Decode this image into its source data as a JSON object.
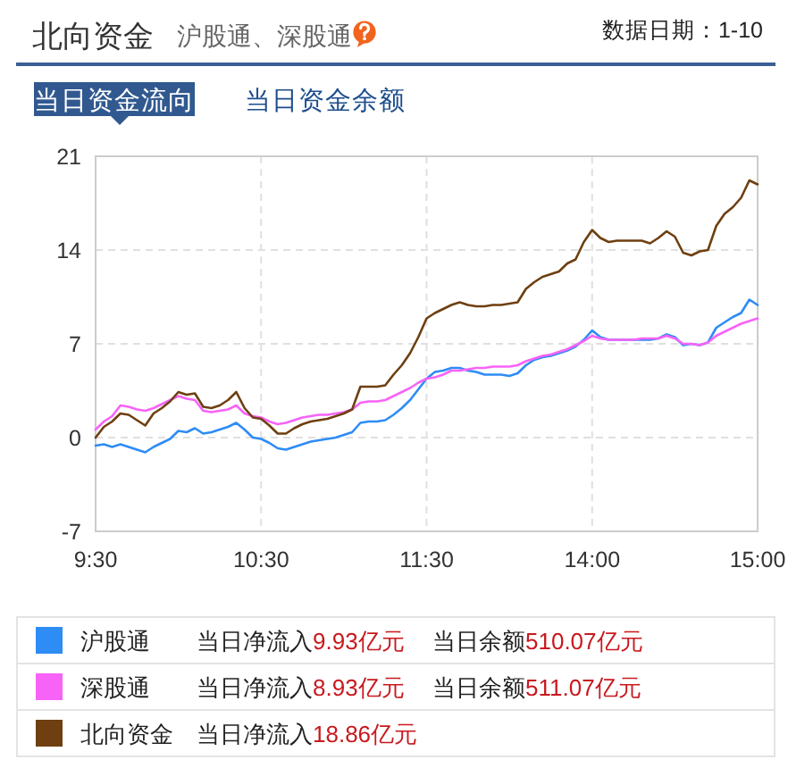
{
  "chart_data": {
    "type": "line",
    "title": "北向资金",
    "subtitle": "沪股通、深股通",
    "annotations": [
      "数据日期：1-10",
      "当日资金流向",
      "当日资金余额",
      "当日净流入9.93亿元",
      "当日余额510.07亿元",
      "当日净流入8.93亿元",
      "当日余额511.07亿元",
      "当日净流入18.86亿元"
    ],
    "categories": [
      "9:30",
      null,
      null,
      null,
      null,
      null,
      null,
      null,
      null,
      null,
      null,
      null,
      null,
      null,
      null,
      null,
      null,
      null,
      null,
      null,
      "10:30",
      null,
      null,
      null,
      null,
      null,
      null,
      null,
      null,
      null,
      null,
      null,
      null,
      null,
      null,
      null,
      null,
      null,
      null,
      null,
      "11:30",
      null,
      null,
      null,
      null,
      null,
      null,
      null,
      null,
      null,
      null,
      null,
      null,
      null,
      null,
      null,
      null,
      null,
      null,
      null,
      "14:00",
      null,
      null,
      null,
      null,
      null,
      null,
      null,
      null,
      null,
      null,
      null,
      null,
      null,
      null,
      null,
      null,
      null,
      null,
      null,
      "15:00"
    ],
    "series": [
      {
        "name": "沪股通",
        "color": "#2e8cf5",
        "values": [
          -0.6,
          -0.5,
          -0.7,
          -0.5,
          -0.7,
          -0.9,
          -1.1,
          -0.7,
          -0.4,
          -0.1,
          0.5,
          0.4,
          0.7,
          0.3,
          0.4,
          0.6,
          0.8,
          1.1,
          0.6,
          0.0,
          -0.1,
          -0.4,
          -0.8,
          -0.9,
          -0.7,
          -0.5,
          -0.3,
          -0.2,
          -0.1,
          0.0,
          0.2,
          0.4,
          1.1,
          1.2,
          1.2,
          1.3,
          1.7,
          2.2,
          2.8,
          3.6,
          4.4,
          4.9,
          5.0,
          5.2,
          5.2,
          5.0,
          4.9,
          4.7,
          4.7,
          4.7,
          4.6,
          4.8,
          5.4,
          5.8,
          6.0,
          6.1,
          6.3,
          6.5,
          6.8,
          7.3,
          8.0,
          7.5,
          7.3,
          7.3,
          7.3,
          7.3,
          7.3,
          7.3,
          7.4,
          7.7,
          7.5,
          6.9,
          7.0,
          6.9,
          7.1,
          8.2,
          8.6,
          9.0,
          9.3,
          10.3,
          9.9
        ]
      },
      {
        "name": "深股通",
        "color": "#f763f7",
        "values": [
          0.6,
          1.2,
          1.6,
          2.4,
          2.3,
          2.1,
          2.0,
          2.2,
          2.5,
          2.8,
          3.1,
          2.9,
          2.8,
          2.0,
          1.9,
          2.0,
          2.1,
          2.4,
          1.8,
          1.6,
          1.5,
          1.2,
          1.0,
          1.1,
          1.3,
          1.5,
          1.6,
          1.7,
          1.7,
          1.8,
          1.9,
          2.1,
          2.6,
          2.7,
          2.7,
          2.8,
          3.1,
          3.4,
          3.7,
          4.1,
          4.4,
          4.5,
          4.7,
          5.0,
          5.0,
          5.1,
          5.2,
          5.2,
          5.3,
          5.3,
          5.3,
          5.4,
          5.7,
          5.9,
          6.1,
          6.2,
          6.4,
          6.6,
          6.9,
          7.2,
          7.6,
          7.4,
          7.3,
          7.3,
          7.3,
          7.3,
          7.4,
          7.4,
          7.4,
          7.6,
          7.4,
          7.0,
          7.0,
          6.9,
          7.1,
          7.6,
          7.9,
          8.2,
          8.5,
          8.7,
          8.9
        ]
      },
      {
        "name": "北向资金",
        "color": "#6e3f10",
        "values": [
          0.0,
          0.8,
          1.2,
          1.8,
          1.7,
          1.3,
          0.9,
          1.8,
          2.2,
          2.7,
          3.4,
          3.2,
          3.3,
          2.3,
          2.2,
          2.4,
          2.8,
          3.4,
          2.2,
          1.5,
          1.4,
          0.9,
          0.3,
          0.3,
          0.7,
          1.0,
          1.2,
          1.3,
          1.4,
          1.6,
          1.8,
          2.1,
          3.8,
          3.8,
          3.8,
          3.9,
          4.7,
          5.4,
          6.3,
          7.5,
          8.9,
          9.3,
          9.6,
          9.9,
          10.1,
          9.9,
          9.8,
          9.8,
          9.9,
          9.9,
          10.0,
          10.1,
          11.1,
          11.6,
          12.0,
          12.2,
          12.4,
          13.0,
          13.3,
          14.6,
          15.5,
          14.9,
          14.6,
          14.7,
          14.7,
          14.7,
          14.7,
          14.5,
          14.9,
          15.4,
          15.0,
          13.8,
          13.6,
          13.9,
          14.0,
          15.8,
          16.7,
          17.2,
          17.9,
          19.2,
          18.9
        ]
      }
    ],
    "ylim": [
      -7,
      21
    ],
    "yticks": [
      -7,
      0,
      7,
      14,
      21
    ],
    "grid": true,
    "legend": "bottom",
    "line_style": "solid"
  }
}
